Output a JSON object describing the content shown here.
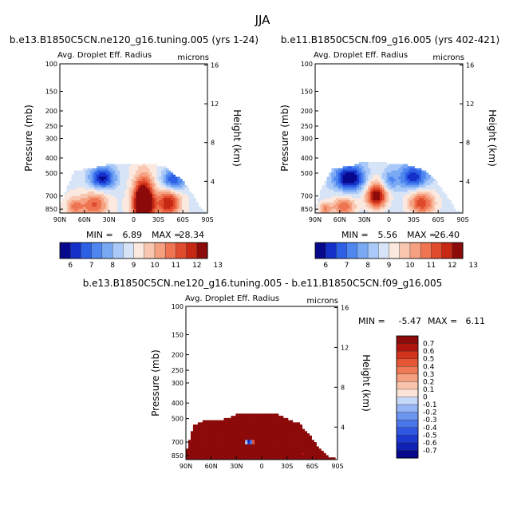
{
  "figure": {
    "title": "JJA",
    "variable": "Avg. Droplet Eff. Radius",
    "units": "microns"
  },
  "chart_data": [
    {
      "type": "heatmap",
      "title": "b.e13.B1850C5CN.ne120_g16.tuning.005 (yrs 1-24)",
      "subtitle": "Avg. Droplet Eff. Radius",
      "units": "microns",
      "xlabel": "",
      "ylabel": "Pressure (mb)",
      "ylabel_right": "Height (km)",
      "xticks": [
        "90N",
        "60N",
        "30N",
        "0",
        "30S",
        "60S",
        "90S"
      ],
      "yticks": [
        100,
        150,
        200,
        250,
        300,
        400,
        500,
        700,
        850
      ],
      "yticks_right": [
        16,
        12,
        8,
        4
      ],
      "stats": {
        "min_label": "MIN =",
        "min": "6.89",
        "max_label": "MAX =",
        "max": "28.34"
      },
      "colorbar": {
        "levels": [
          "6",
          "7",
          "8",
          "9",
          "10",
          "11",
          "12",
          "13"
        ]
      },
      "fields": [
        {
          "lat": -12,
          "p": 780,
          "slat": 12,
          "sp": 220,
          "amp": 7
        },
        {
          "lat": -42,
          "p": 780,
          "slat": 14,
          "sp": 160,
          "amp": 3.5
        },
        {
          "lat": 48,
          "p": 800,
          "slat": 16,
          "sp": 140,
          "amp": 2.5
        },
        {
          "lat": 72,
          "p": 820,
          "slat": 10,
          "sp": 100,
          "amp": 2
        },
        {
          "lat": 38,
          "p": 540,
          "slat": 16,
          "sp": 90,
          "amp": -3.5
        },
        {
          "lat": -48,
          "p": 560,
          "slat": 14,
          "sp": 90,
          "amp": -3
        }
      ],
      "base": 9.4,
      "ceiling": [
        [
          90,
          800
        ],
        [
          80,
          600
        ],
        [
          72,
          480
        ],
        [
          45,
          460
        ],
        [
          30,
          440
        ],
        [
          -25,
          440
        ],
        [
          -40,
          460
        ],
        [
          -60,
          560
        ],
        [
          -75,
          720
        ],
        [
          -82,
          840
        ],
        [
          -90,
          900
        ]
      ]
    },
    {
      "type": "heatmap",
      "title": "b.e11.B1850C5CN.f09_g16.005 (yrs 402-421)",
      "subtitle": "Avg. Droplet Eff. Radius",
      "units": "microns",
      "xlabel": "",
      "ylabel": "Pressure (mb)",
      "ylabel_right": "Height (km)",
      "xticks": [
        "90N",
        "60N",
        "30N",
        "0",
        "30S",
        "60S",
        "90S"
      ],
      "yticks": [
        100,
        150,
        200,
        250,
        300,
        400,
        500,
        700,
        850
      ],
      "yticks_right": [
        16,
        12,
        8,
        4
      ],
      "stats": {
        "min_label": "MIN =",
        "min": "5.56",
        "max_label": "MAX =",
        "max": "26.40"
      },
      "colorbar": {
        "levels": [
          "6",
          "7",
          "8",
          "9",
          "10",
          "11",
          "12",
          "13"
        ]
      },
      "fields": [
        {
          "lat": 15,
          "p": 700,
          "slat": 12,
          "sp": 130,
          "amp": 4.5
        },
        {
          "lat": -40,
          "p": 780,
          "slat": 16,
          "sp": 140,
          "amp": 3
        },
        {
          "lat": 55,
          "p": 820,
          "slat": 14,
          "sp": 110,
          "amp": 2.5
        },
        {
          "lat": 78,
          "p": 850,
          "slat": 8,
          "sp": 80,
          "amp": 2
        },
        {
          "lat": 48,
          "p": 540,
          "slat": 18,
          "sp": 100,
          "amp": -4
        },
        {
          "lat": -30,
          "p": 530,
          "slat": 18,
          "sp": 100,
          "amp": -3
        },
        {
          "lat": 0,
          "p": 560,
          "slat": 10,
          "sp": 80,
          "amp": -1.5
        }
      ],
      "base": 9.2,
      "ceiling": [
        [
          90,
          820
        ],
        [
          82,
          620
        ],
        [
          70,
          470
        ],
        [
          45,
          450
        ],
        [
          30,
          420
        ],
        [
          -20,
          440
        ],
        [
          -45,
          480
        ],
        [
          -62,
          600
        ],
        [
          -75,
          760
        ],
        [
          -82,
          860
        ],
        [
          -90,
          900
        ]
      ]
    },
    {
      "type": "heatmap",
      "title": "b.e13.B1850C5CN.ne120_g16.tuning.005 - b.e11.B1850C5CN.f09_g16.005",
      "subtitle": "Avg. Droplet Eff. Radius",
      "units": "microns",
      "xlabel": "",
      "ylabel": "Pressure (mb)",
      "ylabel_right": "Height (km)",
      "xticks": [
        "90N",
        "60N",
        "30N",
        "0",
        "30S",
        "60S",
        "90S"
      ],
      "yticks": [
        100,
        150,
        200,
        250,
        300,
        400,
        500,
        700,
        850
      ],
      "yticks_right": [
        16,
        12,
        8,
        4
      ],
      "stats": {
        "min_label": "MIN =",
        "min": "-5.47",
        "max_label": "MAX =",
        "max": "6.11"
      },
      "colorbar": {
        "levels": [
          "0.7",
          "0.6",
          "0.5",
          "0.4",
          "0.3",
          "0.2",
          "0.1",
          "0",
          "-0.1",
          "-0.2",
          "-0.3",
          "-0.4",
          "-0.5",
          "-0.6",
          "-0.7"
        ]
      },
      "fields": [
        {
          "lat": 15,
          "p": 700,
          "slat": 7,
          "sp": 30,
          "amp": -3
        },
        {
          "lat": -50,
          "p": 830,
          "slat": 6,
          "sp": 40,
          "amp": -1.4
        }
      ],
      "base": 2.0,
      "ceiling": [
        [
          90,
          820
        ],
        [
          82,
          560
        ],
        [
          72,
          520
        ],
        [
          40,
          500
        ],
        [
          30,
          470
        ],
        [
          -20,
          470
        ],
        [
          -45,
          540
        ],
        [
          -58,
          650
        ],
        [
          -70,
          780
        ],
        [
          -78,
          850
        ],
        [
          -90,
          900
        ]
      ]
    }
  ]
}
